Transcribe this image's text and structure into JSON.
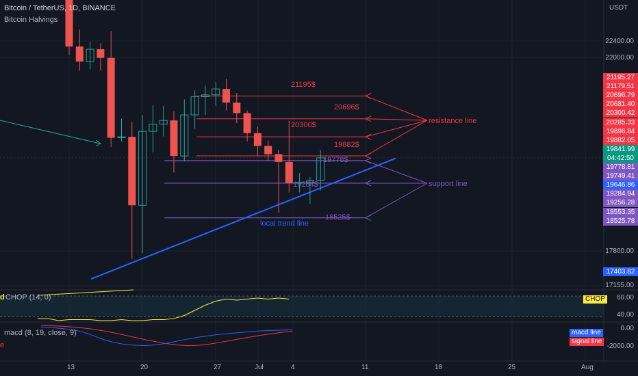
{
  "header": {
    "symbol": "Bitcoin / TetherUS, 1D, BINANCE",
    "indicator": "Bitcoin Halvings"
  },
  "axis": {
    "currency": "USDT",
    "price_labels": [
      "22400.00",
      "22000.00",
      "17800.00",
      "17403.82",
      "17155.00"
    ],
    "time_labels": [
      "13",
      "20",
      "27",
      "Jul",
      "4",
      "11",
      "18",
      "25",
      "Aug"
    ]
  },
  "price_tags": [
    {
      "text": "21195.27",
      "color": "#f23645"
    },
    {
      "text": "21179.51",
      "color": "#f23645"
    },
    {
      "text": "20696.79",
      "color": "#f23645"
    },
    {
      "text": "20681.40",
      "color": "#f23645"
    },
    {
      "text": "20300.42",
      "color": "#f23645"
    },
    {
      "text": "20285.33",
      "color": "#f23645"
    },
    {
      "text": "19896.84",
      "color": "#f23645"
    },
    {
      "text": "19882.05",
      "color": "#f23645"
    },
    {
      "text": "19841.99",
      "color": "#089981"
    },
    {
      "text": "04:42:50",
      "color": "#089981"
    },
    {
      "text": "19778.81",
      "color": "#7e57c2"
    },
    {
      "text": "19749.41",
      "color": "#7e57c2"
    },
    {
      "text": "19646.86",
      "color": "#2962ff"
    },
    {
      "text": "19284.94",
      "color": "#7e57c2"
    },
    {
      "text": "19256.28",
      "color": "#7e57c2"
    },
    {
      "text": "18553.35",
      "color": "#7e57c2"
    },
    {
      "text": "18525.78",
      "color": "#7e57c2"
    }
  ],
  "current_low_tag": {
    "text": "17403.82",
    "color": "#2962ff"
  },
  "levels": {
    "resistance": [
      "21195$",
      "20696$",
      "20300$",
      "19882$"
    ],
    "support": [
      "19778$",
      "19284$",
      "18525$"
    ]
  },
  "annotations": {
    "resistance": "resistance line",
    "support": "support line",
    "trend": "local trend line"
  },
  "chop": {
    "label": "CHOP (14, 0)",
    "prefix": "d",
    "badge": "CHOP",
    "levels": [
      "60.00",
      "40.00"
    ]
  },
  "macd": {
    "label": "macd (8, 19, close, 9)",
    "prefix": "e",
    "values": [
      "0.00",
      "-2000.00"
    ],
    "macd_line": "macd line",
    "signal_line": "signal line"
  },
  "colors": {
    "bull": "#26a69a",
    "bear": "#ef5350",
    "resistance": "#f23645",
    "support": "#7e57c2",
    "trend": "#2962ff",
    "background": "#131722"
  },
  "chart_data": {
    "type": "candlestick",
    "candles": [
      {
        "o": 23300,
        "h": 23500,
        "l": 22100,
        "c": 22280,
        "dir": "down"
      },
      {
        "o": 22280,
        "h": 22650,
        "l": 21750,
        "c": 21950,
        "dir": "down"
      },
      {
        "o": 21950,
        "h": 22380,
        "l": 21780,
        "c": 22220,
        "dir": "up"
      },
      {
        "o": 22220,
        "h": 22350,
        "l": 21750,
        "c": 22030,
        "dir": "down"
      },
      {
        "o": 22030,
        "h": 22620,
        "l": 20080,
        "c": 20280,
        "dir": "down"
      },
      {
        "o": 20280,
        "h": 20700,
        "l": 20200,
        "c": 20300,
        "dir": "up"
      },
      {
        "o": 20300,
        "h": 20620,
        "l": 17620,
        "c": 18800,
        "dir": "down"
      },
      {
        "o": 18800,
        "h": 20780,
        "l": 17750,
        "c": 20420,
        "dir": "up"
      },
      {
        "o": 20420,
        "h": 20990,
        "l": 19960,
        "c": 20580,
        "dir": "up"
      },
      {
        "o": 20580,
        "h": 20980,
        "l": 20310,
        "c": 20660,
        "dir": "up"
      },
      {
        "o": 20660,
        "h": 20860,
        "l": 19520,
        "c": 19880,
        "dir": "down"
      },
      {
        "o": 19880,
        "h": 21120,
        "l": 19760,
        "c": 20780,
        "dir": "up"
      },
      {
        "o": 20780,
        "h": 21320,
        "l": 20480,
        "c": 21180,
        "dir": "up"
      },
      {
        "o": 21180,
        "h": 21420,
        "l": 20780,
        "c": 21220,
        "dir": "up"
      },
      {
        "o": 21220,
        "h": 21500,
        "l": 20980,
        "c": 21350,
        "dir": "up"
      },
      {
        "o": 21350,
        "h": 21560,
        "l": 20880,
        "c": 21050,
        "dir": "down"
      },
      {
        "o": 21050,
        "h": 21260,
        "l": 20600,
        "c": 20820,
        "dir": "down"
      },
      {
        "o": 20820,
        "h": 20880,
        "l": 20200,
        "c": 20380,
        "dir": "down"
      },
      {
        "o": 20380,
        "h": 20520,
        "l": 19880,
        "c": 20100,
        "dir": "down"
      },
      {
        "o": 20100,
        "h": 20220,
        "l": 19780,
        "c": 19920,
        "dir": "down"
      },
      {
        "o": 19920,
        "h": 20020,
        "l": 18640,
        "c": 19750,
        "dir": "down"
      },
      {
        "o": 19750,
        "h": 20650,
        "l": 19080,
        "c": 19290,
        "dir": "down"
      },
      {
        "o": 19290,
        "h": 19510,
        "l": 19080,
        "c": 19300,
        "dir": "up"
      },
      {
        "o": 19300,
        "h": 19420,
        "l": 18830,
        "c": 19340,
        "dir": "up"
      },
      {
        "o": 19340,
        "h": 20010,
        "l": 19120,
        "c": 19840,
        "dir": "up"
      }
    ],
    "resistance_levels": [
      21195,
      20696,
      20300,
      19882
    ],
    "support_levels": [
      19778,
      19284,
      18525
    ],
    "trend_line": [
      17620,
      19800
    ],
    "chop_series": [
      38,
      38,
      36,
      37,
      37,
      37,
      36,
      36,
      37,
      36,
      36,
      37,
      37,
      38,
      41,
      46,
      51,
      55,
      57,
      56,
      57,
      58,
      57,
      58,
      57
    ],
    "macd_series": [
      120,
      60,
      -40,
      -180,
      -420,
      -820,
      -1260,
      -1560,
      -1760,
      -1850,
      -1900,
      -1800,
      -1650,
      -1400,
      -1180,
      -980,
      -820,
      -680,
      -570,
      -470,
      -380,
      -300,
      -250,
      -210,
      -180
    ],
    "signal_series": [
      300,
      260,
      200,
      120,
      20,
      -110,
      -300,
      -520,
      -760,
      -1010,
      -1260,
      -1480,
      -1680,
      -1830,
      -1890,
      -1860,
      -1740,
      -1560,
      -1360,
      -1150,
      -950,
      -770,
      -600,
      -450,
      -320
    ]
  }
}
